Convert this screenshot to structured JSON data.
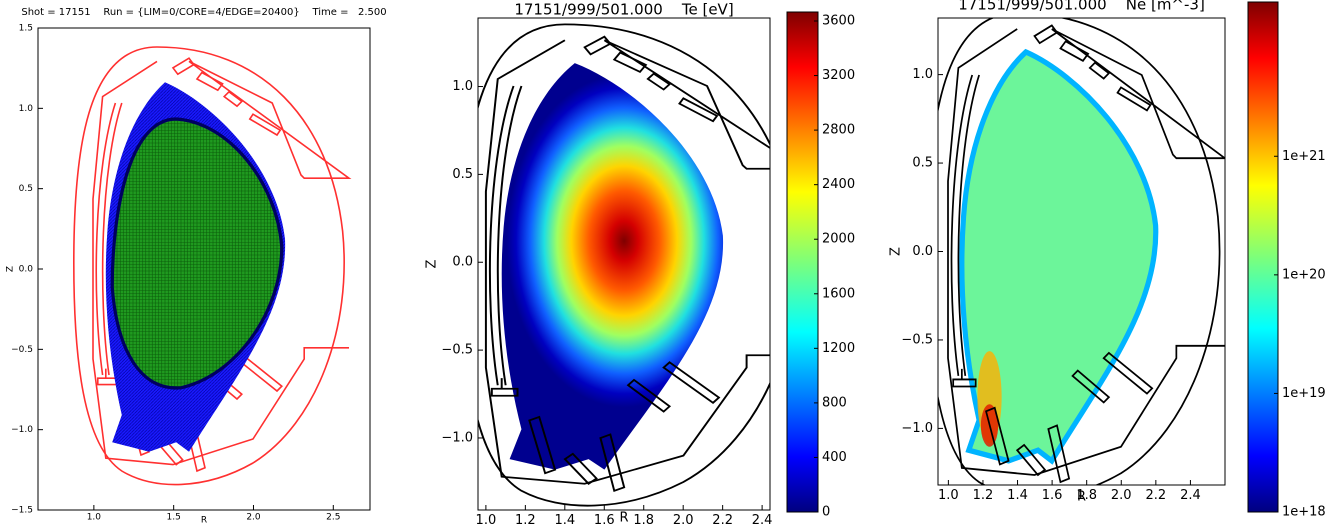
{
  "chart_data": [
    {
      "type": "mesh",
      "title": "Shot = 17151    Run = {LIM=0/CORE=4/EDGE=20400}    Time =   2.500",
      "xlabel": "R",
      "ylabel": "Z",
      "xlim": [
        0.65,
        2.73
      ],
      "ylim": [
        -1.5,
        1.5
      ],
      "xticks": [
        {
          "value": 1,
          "label": "1.0"
        },
        1.5,
        {
          "value": 2,
          "label": "2.0"
        },
        2.5
      ],
      "yticks": [
        1.5,
        {
          "value": 1,
          "label": "1.0"
        },
        0.5,
        {
          "value": 0,
          "label": "0.0"
        },
        {
          "value": -0.5,
          "label": "−0.5"
        },
        {
          "value": -1,
          "label": "−1.0"
        },
        {
          "value": -1.5,
          "label": "−1.5"
        }
      ]
    },
    {
      "type": "heatmap",
      "title": "17151/999/501.000    Te [eV]",
      "xlabel": "R",
      "ylabel": "Z",
      "xlim": [
        0.96,
        2.44
      ],
      "ylim": [
        -1.41,
        1.39
      ],
      "xticks": [
        {
          "value": 1,
          "label": "1.0"
        },
        1.2,
        1.4,
        1.6,
        1.8,
        {
          "value": 2,
          "label": "2.0"
        },
        2.2,
        2.4
      ],
      "yticks": [
        {
          "value": 1,
          "label": "1.0"
        },
        0.5,
        {
          "value": 0,
          "label": "0.0"
        },
        {
          "value": -0.5,
          "label": "−0.5"
        },
        {
          "value": -1,
          "label": "−1.0"
        }
      ],
      "clim": [
        0,
        3666
      ],
      "clog": false,
      "cticks": [
        0,
        400,
        800,
        1200,
        1600,
        2000,
        2400,
        2800,
        3200,
        3600
      ]
    },
    {
      "type": "heatmap",
      "title": "17151/999/501.000    Ne [m^-3]",
      "xlabel": "R",
      "ylabel": "Z",
      "xlim": [
        0.94,
        2.6
      ],
      "ylim": [
        -1.32,
        1.32
      ],
      "xticks": [
        {
          "value": 1,
          "label": "1.0"
        },
        1.2,
        1.4,
        1.6,
        1.8,
        {
          "value": 2,
          "label": "2.0"
        },
        2.2,
        2.4
      ],
      "yticks": [
        {
          "value": 1,
          "label": "1.0"
        },
        0.5,
        {
          "value": 0,
          "label": "0.0"
        },
        {
          "value": -0.5,
          "label": "−0.5"
        },
        {
          "value": -1,
          "label": "−1.0"
        }
      ],
      "clim": [
        1e+18,
        2e+22
      ],
      "clog": true,
      "cticks": [
        {
          "value": 1e+18,
          "label": "1e+18"
        },
        {
          "value": 1e+19,
          "label": "1e+19"
        },
        {
          "value": 1e+20,
          "label": "1e+20"
        },
        {
          "value": 1e+21,
          "label": "1e+21"
        }
      ]
    }
  ]
}
